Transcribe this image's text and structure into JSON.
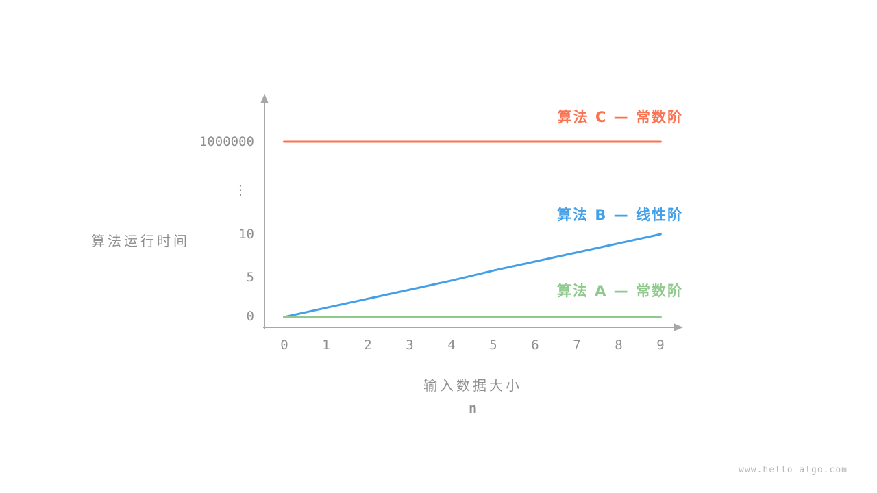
{
  "chart_data": {
    "type": "line",
    "title": "",
    "xlabel": "输入数据大小",
    "xlabel_unit": "n",
    "ylabel": "算法运行时间",
    "x": [
      0,
      1,
      2,
      3,
      4,
      5,
      6,
      7,
      8,
      9
    ],
    "x_ticks": [
      "0",
      "1",
      "2",
      "3",
      "4",
      "5",
      "6",
      "7",
      "8",
      "9"
    ],
    "y_ticks": [
      "1000000",
      "⋮",
      "10",
      "5",
      "0"
    ],
    "y_axis_break": "axis broken between 10 and 1000000 (shown as vertical ellipsis)",
    "grid": false,
    "legend_position": "right, next to each line",
    "axis_color": "#a8a8a8",
    "tick_color": "#8f8f8f",
    "series": [
      {
        "name": "算法 C — 常数阶",
        "color": "#f97352",
        "values": [
          1000000,
          1000000,
          1000000,
          1000000,
          1000000,
          1000000,
          1000000,
          1000000,
          1000000,
          1000000
        ]
      },
      {
        "name": "算法 B — 线性阶",
        "color": "#43a0e8",
        "values": [
          0,
          1.1,
          2.2,
          3.3,
          4.4,
          5.6,
          6.7,
          7.8,
          8.9,
          10
        ]
      },
      {
        "name": "算法 A — 常数阶",
        "color": "#8fca8c",
        "values": [
          0,
          0,
          0,
          0,
          0,
          0,
          0,
          0,
          0,
          0
        ]
      }
    ]
  },
  "watermark": "www.hello-algo.com"
}
